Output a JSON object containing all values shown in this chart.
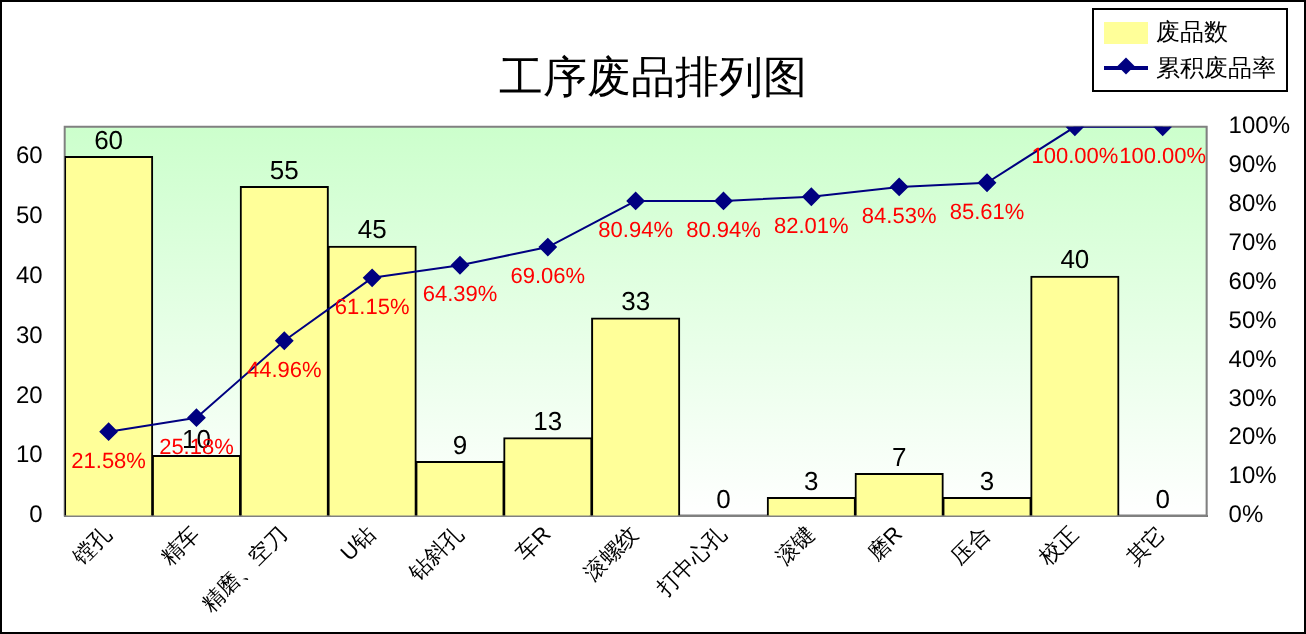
{
  "chart_data": {
    "type": "bar",
    "title": "工序废品排列图",
    "categories": [
      "镗孔",
      "精车",
      "精磨、空刀",
      "U钻",
      "钻斜孔",
      "车R",
      "滚螺纹",
      "打中心孔",
      "滚键",
      "磨R",
      "压合",
      "校正",
      "其它"
    ],
    "series": [
      {
        "name": "废品数",
        "color": "#ffff99",
        "values": [
          60,
          10,
          55,
          45,
          9,
          13,
          33,
          0,
          3,
          7,
          3,
          40,
          0
        ],
        "value_labels": [
          "60",
          "10",
          "55",
          "45",
          "9",
          "13",
          "33",
          "0",
          "3",
          "7",
          "3",
          "40",
          "0"
        ]
      },
      {
        "name": "累积废品率",
        "type": "line",
        "axis": "y2",
        "color": "#000080",
        "values": [
          21.58,
          25.18,
          44.96,
          61.15,
          64.39,
          69.06,
          80.94,
          80.94,
          82.01,
          84.53,
          85.61,
          100,
          100
        ],
        "value_labels": [
          "21.58%",
          "25.18%",
          "44.96%",
          "61.15%",
          "64.39%",
          "69.06%",
          "80.94%",
          "80.94%",
          "82.01%",
          "84.53%",
          "85.61%",
          "100.00%",
          "100.00%"
        ]
      }
    ],
    "ylim": [
      0,
      65
    ],
    "yticks": [
      0,
      10,
      20,
      30,
      40,
      50,
      60
    ],
    "y2lim": [
      0,
      100
    ],
    "y2ticks": [
      {
        "value": 0,
        "label": "0%"
      },
      {
        "value": 10,
        "label": "10%"
      },
      {
        "value": 20,
        "label": "20%"
      },
      {
        "value": 30,
        "label": "30%"
      },
      {
        "value": 40,
        "label": "40%"
      },
      {
        "value": 50,
        "label": "50%"
      },
      {
        "value": 60,
        "label": "60%"
      },
      {
        "value": 70,
        "label": "70%"
      },
      {
        "value": 80,
        "label": "80%"
      },
      {
        "value": 90,
        "label": "90%"
      },
      {
        "value": 100,
        "label": "100%"
      }
    ],
    "grid": false,
    "legend": "top right",
    "marker": "diamond",
    "line_style": "solid"
  }
}
